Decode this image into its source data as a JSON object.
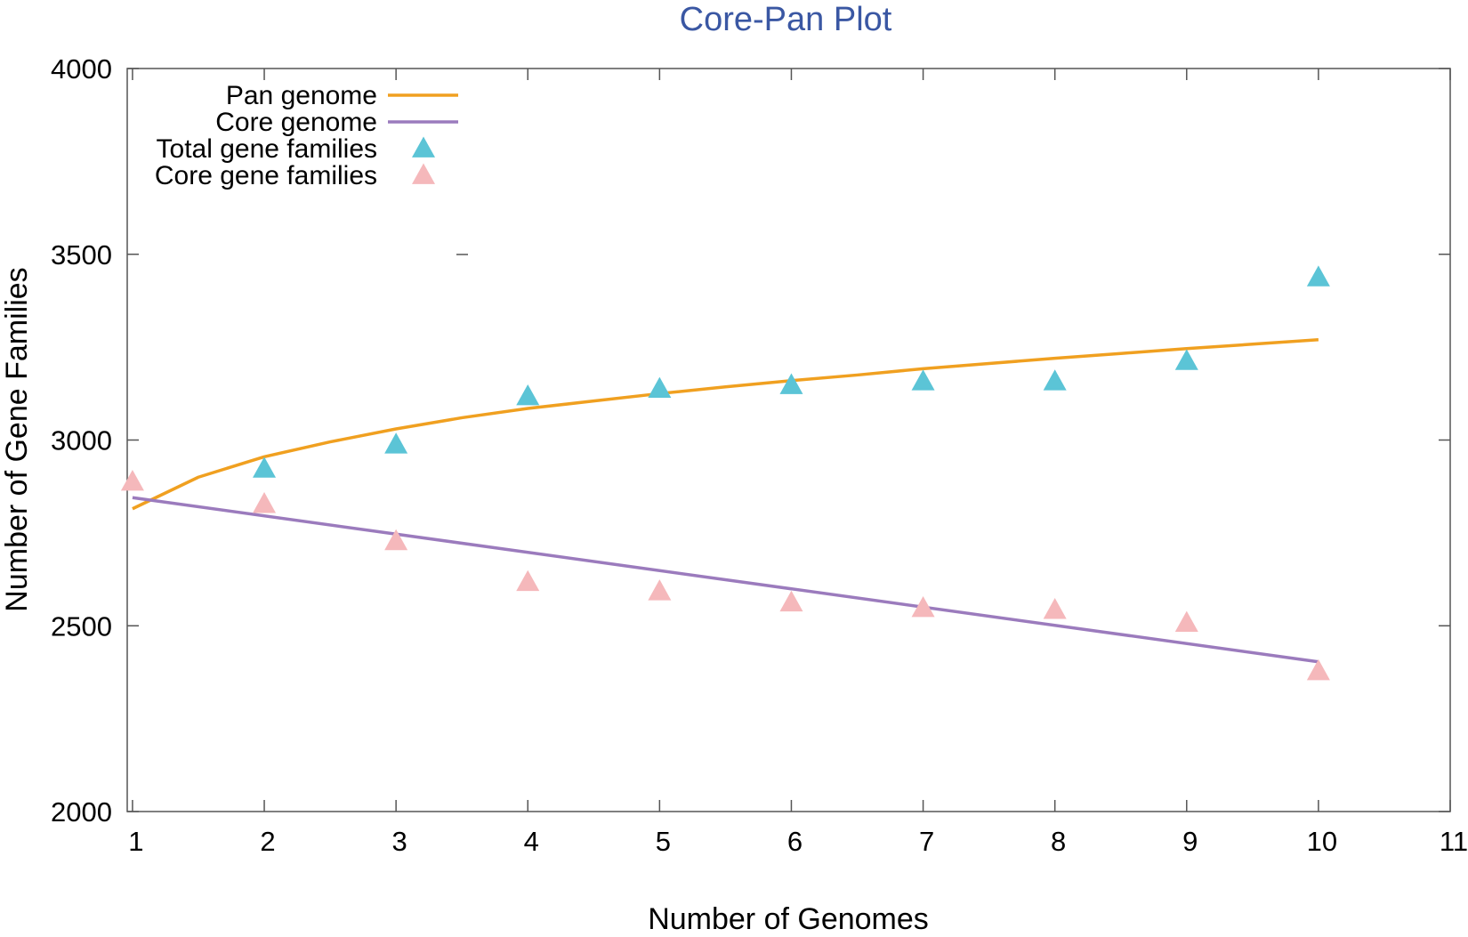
{
  "chart_data": {
    "type": "line",
    "title": "Core-Pan Plot",
    "title_color": "#3a57a3",
    "xlabel": "Number of Genomes",
    "ylabel": "Number of Gene Families",
    "xlim": [
      0.96,
      11
    ],
    "ylim": [
      2000,
      4000
    ],
    "xticks": [
      "1",
      "2",
      "3",
      "4",
      "5",
      "6",
      "7",
      "8",
      "9",
      "10",
      "11"
    ],
    "yticks": [
      "2000",
      "2500",
      "3000",
      "3500",
      "4000"
    ],
    "legend_position": "top-left",
    "series": [
      {
        "name": "Pan genome",
        "kind": "line",
        "color": "#f0a020",
        "x": [
          1,
          1.5,
          2,
          2.5,
          3,
          3.5,
          4,
          4.5,
          5,
          5.5,
          6,
          6.5,
          7,
          7.5,
          8,
          8.5,
          9,
          9.5,
          10
        ],
        "values": [
          2815,
          2900,
          2955,
          2995,
          3030,
          3060,
          3085,
          3105,
          3125,
          3143,
          3160,
          3175,
          3192,
          3206,
          3220,
          3233,
          3246,
          3258,
          3270
        ]
      },
      {
        "name": "Core genome",
        "kind": "line",
        "color": "#9b7bbd",
        "x": [
          1,
          10
        ],
        "values": [
          2845,
          2403
        ]
      },
      {
        "name": "Total gene families",
        "kind": "scatter",
        "color": "#5bc4d6",
        "x": [
          2,
          3,
          4,
          5,
          6,
          7,
          8,
          9,
          10
        ],
        "values": [
          2920,
          2985,
          3115,
          3135,
          3145,
          3155,
          3155,
          3210,
          3435
        ]
      },
      {
        "name": "Core gene families",
        "kind": "scatter",
        "color": "#f5b8bb",
        "x": [
          1,
          2,
          3,
          4,
          5,
          6,
          7,
          8,
          9,
          10
        ],
        "values": [
          2885,
          2825,
          2725,
          2615,
          2590,
          2560,
          2545,
          2540,
          2505,
          2375
        ]
      }
    ]
  }
}
